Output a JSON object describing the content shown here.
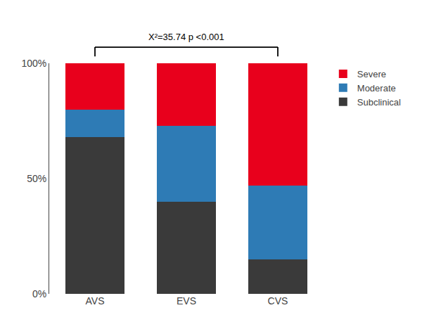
{
  "chart_data": {
    "type": "bar",
    "stacked": true,
    "categories": [
      "AVS",
      "EVS",
      "CVS"
    ],
    "series": [
      {
        "name": "Subclinical",
        "color": "#3a3a3a",
        "values": [
          68,
          40,
          15
        ]
      },
      {
        "name": "Moderate",
        "color": "#2e7bb5",
        "values": [
          12,
          33,
          32
        ]
      },
      {
        "name": "Severe",
        "color": "#e8001c",
        "values": [
          20,
          27,
          53
        ]
      }
    ],
    "ylim": [
      0,
      100
    ],
    "yticks": [
      {
        "value": 0,
        "label": "0%"
      },
      {
        "value": 50,
        "label": "50%"
      },
      {
        "value": 100,
        "label": "100%"
      }
    ],
    "annotation": "X²=35.74 p <0.001",
    "legend": "right",
    "grid": false
  }
}
